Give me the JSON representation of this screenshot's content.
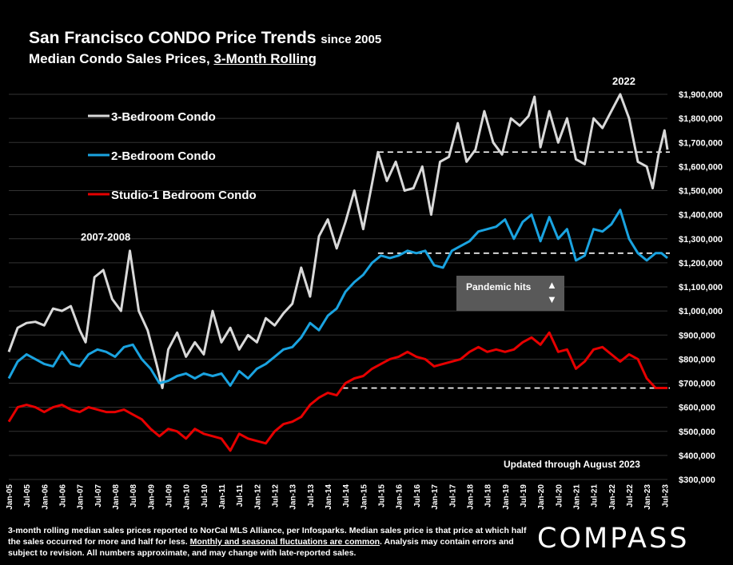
{
  "title": {
    "main": "San Francisco CONDO Price Trends",
    "since": "since 2005",
    "sub_prefix": "Median Condo Sales Prices, ",
    "sub_underlined": "3-Month Rolling"
  },
  "annotations": {
    "peak_2022": "2022",
    "peak_2007": "2007-2008",
    "pandemic": "Pandemic hits",
    "pandemic_up": "▲",
    "pandemic_down": "▼",
    "updated": "Updated through August 2023"
  },
  "footnote": {
    "part1": "3-month rolling median sales prices reported to NorCal MLS Alliance, per Infosparks. Median sales price is that price at which half the sales occurred for more and half for less. ",
    "part2": "Monthly and seasonal fluctuations are common",
    "part3": ".  Analysis may contain errors and subject to revision. All numbers approximate, and may change with late-reported sales."
  },
  "logo": "COMPASS",
  "chart_data": {
    "type": "line",
    "ylim": [
      300000,
      1900000
    ],
    "y_ticks": [
      "$300,000",
      "$400,000",
      "$500,000",
      "$600,000",
      "$700,000",
      "$800,000",
      "$900,000",
      "$1,000,000",
      "$1,100,000",
      "$1,200,000",
      "$1,300,000",
      "$1,400,000",
      "$1,500,000",
      "$1,600,000",
      "$1,700,000",
      "$1,800,000",
      "$1,900,000"
    ],
    "x_ticks": [
      "Jan-05",
      "Jul-05",
      "Jan-06",
      "Jul-06",
      "Jan-07",
      "Jul-07",
      "Jan-08",
      "Jul-08",
      "Jan-09",
      "Jul-09",
      "Jan-10",
      "Jul-10",
      "Jan-11",
      "Jul-11",
      "Jan-12",
      "Jul-12",
      "Jan-13",
      "Jul-13",
      "Jan-14",
      "Jul-14",
      "Jan-15",
      "Jul-15",
      "Jan-16",
      "Jul-16",
      "Jan-17",
      "Jul-17",
      "Jan-18",
      "Jul-18",
      "Jan-19",
      "Jul-19",
      "Jan-20",
      "Jul-20",
      "Jan-21",
      "Jul-21",
      "Jan-22",
      "Jul-22",
      "Jan-23",
      "Jul-23"
    ],
    "grid": "horizontal",
    "legend": "top-left",
    "series": [
      {
        "name": "3-Bedroom Condo",
        "color": "#d9d9d9",
        "points": [
          [
            "2005-01",
            830000
          ],
          [
            "2005-04",
            930000
          ],
          [
            "2005-07",
            950000
          ],
          [
            "2005-10",
            955000
          ],
          [
            "2006-01",
            940000
          ],
          [
            "2006-04",
            1010000
          ],
          [
            "2006-07",
            1000000
          ],
          [
            "2006-10",
            1020000
          ],
          [
            "2007-01",
            920000
          ],
          [
            "2007-03",
            870000
          ],
          [
            "2007-06",
            1140000
          ],
          [
            "2007-09",
            1170000
          ],
          [
            "2007-12",
            1050000
          ],
          [
            "2008-03",
            1000000
          ],
          [
            "2008-06",
            1250000
          ],
          [
            "2008-09",
            1000000
          ],
          [
            "2008-12",
            920000
          ],
          [
            "2009-03",
            780000
          ],
          [
            "2009-05",
            680000
          ],
          [
            "2009-07",
            840000
          ],
          [
            "2009-10",
            910000
          ],
          [
            "2010-01",
            810000
          ],
          [
            "2010-04",
            870000
          ],
          [
            "2010-07",
            820000
          ],
          [
            "2010-10",
            1000000
          ],
          [
            "2011-01",
            870000
          ],
          [
            "2011-04",
            930000
          ],
          [
            "2011-07",
            840000
          ],
          [
            "2011-10",
            900000
          ],
          [
            "2012-01",
            870000
          ],
          [
            "2012-04",
            970000
          ],
          [
            "2012-07",
            940000
          ],
          [
            "2012-10",
            990000
          ],
          [
            "2013-01",
            1030000
          ],
          [
            "2013-04",
            1180000
          ],
          [
            "2013-07",
            1060000
          ],
          [
            "2013-10",
            1310000
          ],
          [
            "2014-01",
            1380000
          ],
          [
            "2014-04",
            1260000
          ],
          [
            "2014-07",
            1370000
          ],
          [
            "2014-10",
            1500000
          ],
          [
            "2015-01",
            1340000
          ],
          [
            "2015-04",
            1530000
          ],
          [
            "2015-06",
            1660000
          ],
          [
            "2015-09",
            1540000
          ],
          [
            "2015-12",
            1620000
          ],
          [
            "2016-03",
            1500000
          ],
          [
            "2016-06",
            1510000
          ],
          [
            "2016-09",
            1600000
          ],
          [
            "2016-12",
            1400000
          ],
          [
            "2017-03",
            1620000
          ],
          [
            "2017-06",
            1640000
          ],
          [
            "2017-09",
            1780000
          ],
          [
            "2017-12",
            1620000
          ],
          [
            "2018-03",
            1670000
          ],
          [
            "2018-06",
            1830000
          ],
          [
            "2018-09",
            1700000
          ],
          [
            "2018-12",
            1650000
          ],
          [
            "2019-03",
            1800000
          ],
          [
            "2019-06",
            1770000
          ],
          [
            "2019-09",
            1810000
          ],
          [
            "2019-11",
            1890000
          ],
          [
            "2020-01",
            1680000
          ],
          [
            "2020-04",
            1830000
          ],
          [
            "2020-07",
            1700000
          ],
          [
            "2020-10",
            1800000
          ],
          [
            "2021-01",
            1630000
          ],
          [
            "2021-04",
            1610000
          ],
          [
            "2021-07",
            1800000
          ],
          [
            "2021-10",
            1760000
          ],
          [
            "2022-01",
            1830000
          ],
          [
            "2022-04",
            1900000
          ],
          [
            "2022-07",
            1800000
          ],
          [
            "2022-10",
            1620000
          ],
          [
            "2023-01",
            1600000
          ],
          [
            "2023-03",
            1510000
          ],
          [
            "2023-05",
            1650000
          ],
          [
            "2023-07",
            1750000
          ],
          [
            "2023-08",
            1670000
          ]
        ]
      },
      {
        "name": "2-Bedroom Condo",
        "color": "#1aa3e0",
        "points": [
          [
            "2005-01",
            720000
          ],
          [
            "2005-04",
            790000
          ],
          [
            "2005-07",
            820000
          ],
          [
            "2005-10",
            800000
          ],
          [
            "2006-01",
            780000
          ],
          [
            "2006-04",
            770000
          ],
          [
            "2006-07",
            830000
          ],
          [
            "2006-10",
            780000
          ],
          [
            "2007-01",
            770000
          ],
          [
            "2007-04",
            820000
          ],
          [
            "2007-07",
            840000
          ],
          [
            "2007-10",
            830000
          ],
          [
            "2008-01",
            810000
          ],
          [
            "2008-04",
            850000
          ],
          [
            "2008-07",
            860000
          ],
          [
            "2008-10",
            800000
          ],
          [
            "2009-01",
            760000
          ],
          [
            "2009-04",
            700000
          ],
          [
            "2009-07",
            710000
          ],
          [
            "2009-10",
            730000
          ],
          [
            "2010-01",
            740000
          ],
          [
            "2010-04",
            720000
          ],
          [
            "2010-07",
            740000
          ],
          [
            "2010-10",
            730000
          ],
          [
            "2011-01",
            740000
          ],
          [
            "2011-04",
            690000
          ],
          [
            "2011-07",
            750000
          ],
          [
            "2011-10",
            720000
          ],
          [
            "2012-01",
            760000
          ],
          [
            "2012-04",
            780000
          ],
          [
            "2012-07",
            810000
          ],
          [
            "2012-10",
            840000
          ],
          [
            "2013-01",
            850000
          ],
          [
            "2013-04",
            890000
          ],
          [
            "2013-07",
            950000
          ],
          [
            "2013-10",
            920000
          ],
          [
            "2014-01",
            980000
          ],
          [
            "2014-04",
            1010000
          ],
          [
            "2014-07",
            1080000
          ],
          [
            "2014-10",
            1120000
          ],
          [
            "2015-01",
            1150000
          ],
          [
            "2015-04",
            1200000
          ],
          [
            "2015-07",
            1230000
          ],
          [
            "2015-10",
            1220000
          ],
          [
            "2016-01",
            1230000
          ],
          [
            "2016-04",
            1250000
          ],
          [
            "2016-07",
            1240000
          ],
          [
            "2016-10",
            1250000
          ],
          [
            "2017-01",
            1190000
          ],
          [
            "2017-04",
            1180000
          ],
          [
            "2017-07",
            1250000
          ],
          [
            "2017-10",
            1270000
          ],
          [
            "2018-01",
            1290000
          ],
          [
            "2018-04",
            1330000
          ],
          [
            "2018-07",
            1340000
          ],
          [
            "2018-10",
            1350000
          ],
          [
            "2019-01",
            1380000
          ],
          [
            "2019-04",
            1300000
          ],
          [
            "2019-07",
            1370000
          ],
          [
            "2019-10",
            1400000
          ],
          [
            "2020-01",
            1290000
          ],
          [
            "2020-04",
            1390000
          ],
          [
            "2020-07",
            1300000
          ],
          [
            "2020-10",
            1340000
          ],
          [
            "2021-01",
            1210000
          ],
          [
            "2021-04",
            1230000
          ],
          [
            "2021-07",
            1340000
          ],
          [
            "2021-10",
            1330000
          ],
          [
            "2022-01",
            1360000
          ],
          [
            "2022-04",
            1420000
          ],
          [
            "2022-07",
            1300000
          ],
          [
            "2022-10",
            1240000
          ],
          [
            "2023-01",
            1210000
          ],
          [
            "2023-04",
            1240000
          ],
          [
            "2023-06",
            1240000
          ],
          [
            "2023-08",
            1220000
          ]
        ]
      },
      {
        "name": "Studio-1 Bedroom Condo",
        "color": "#e60000",
        "points": [
          [
            "2005-01",
            540000
          ],
          [
            "2005-04",
            600000
          ],
          [
            "2005-07",
            610000
          ],
          [
            "2005-10",
            600000
          ],
          [
            "2006-01",
            580000
          ],
          [
            "2006-04",
            600000
          ],
          [
            "2006-07",
            610000
          ],
          [
            "2006-10",
            590000
          ],
          [
            "2007-01",
            580000
          ],
          [
            "2007-04",
            600000
          ],
          [
            "2007-07",
            590000
          ],
          [
            "2007-10",
            580000
          ],
          [
            "2008-01",
            580000
          ],
          [
            "2008-04",
            590000
          ],
          [
            "2008-07",
            570000
          ],
          [
            "2008-10",
            550000
          ],
          [
            "2009-01",
            510000
          ],
          [
            "2009-04",
            480000
          ],
          [
            "2009-07",
            510000
          ],
          [
            "2009-10",
            500000
          ],
          [
            "2010-01",
            470000
          ],
          [
            "2010-04",
            510000
          ],
          [
            "2010-07",
            490000
          ],
          [
            "2010-10",
            480000
          ],
          [
            "2011-01",
            470000
          ],
          [
            "2011-04",
            420000
          ],
          [
            "2011-07",
            490000
          ],
          [
            "2011-10",
            470000
          ],
          [
            "2012-01",
            460000
          ],
          [
            "2012-04",
            450000
          ],
          [
            "2012-07",
            500000
          ],
          [
            "2012-10",
            530000
          ],
          [
            "2013-01",
            540000
          ],
          [
            "2013-04",
            560000
          ],
          [
            "2013-07",
            610000
          ],
          [
            "2013-10",
            640000
          ],
          [
            "2014-01",
            660000
          ],
          [
            "2014-04",
            650000
          ],
          [
            "2014-07",
            700000
          ],
          [
            "2014-10",
            720000
          ],
          [
            "2015-01",
            730000
          ],
          [
            "2015-04",
            760000
          ],
          [
            "2015-07",
            780000
          ],
          [
            "2015-10",
            800000
          ],
          [
            "2016-01",
            810000
          ],
          [
            "2016-04",
            830000
          ],
          [
            "2016-07",
            810000
          ],
          [
            "2016-10",
            800000
          ],
          [
            "2017-01",
            770000
          ],
          [
            "2017-04",
            780000
          ],
          [
            "2017-07",
            790000
          ],
          [
            "2017-10",
            800000
          ],
          [
            "2018-01",
            830000
          ],
          [
            "2018-04",
            850000
          ],
          [
            "2018-07",
            830000
          ],
          [
            "2018-10",
            840000
          ],
          [
            "2019-01",
            830000
          ],
          [
            "2019-04",
            840000
          ],
          [
            "2019-07",
            870000
          ],
          [
            "2019-10",
            890000
          ],
          [
            "2020-01",
            860000
          ],
          [
            "2020-04",
            910000
          ],
          [
            "2020-07",
            830000
          ],
          [
            "2020-10",
            840000
          ],
          [
            "2021-01",
            760000
          ],
          [
            "2021-04",
            790000
          ],
          [
            "2021-07",
            840000
          ],
          [
            "2021-10",
            850000
          ],
          [
            "2022-01",
            820000
          ],
          [
            "2022-04",
            790000
          ],
          [
            "2022-07",
            820000
          ],
          [
            "2022-10",
            800000
          ],
          [
            "2023-01",
            720000
          ],
          [
            "2023-04",
            680000
          ],
          [
            "2023-06",
            680000
          ],
          [
            "2023-08",
            680000
          ]
        ]
      }
    ],
    "reference_lines": [
      {
        "value": 1660000,
        "from": "2015-06",
        "to": "2023-08"
      },
      {
        "value": 1240000,
        "from": "2015-06",
        "to": "2023-08"
      },
      {
        "value": 680000,
        "from": "2014-06",
        "to": "2023-08"
      }
    ]
  }
}
